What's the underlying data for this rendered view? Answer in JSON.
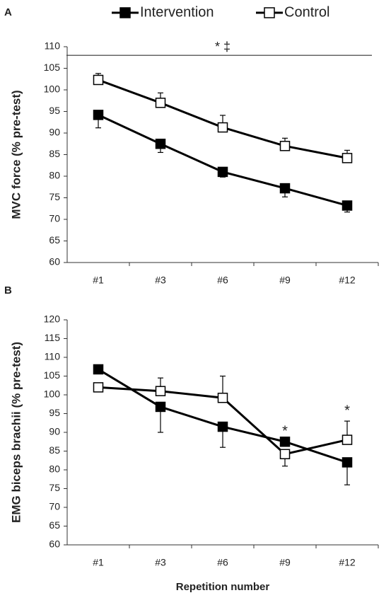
{
  "chart_data": [
    {
      "type": "line",
      "panel": "A",
      "ylabel": "MVC force (% pre-test)",
      "categories": [
        "#1",
        "#3",
        "#6",
        "#9",
        "#12"
      ],
      "ylim": [
        60,
        110
      ],
      "yticks": [
        60,
        65,
        70,
        75,
        80,
        85,
        90,
        95,
        100,
        105,
        110
      ],
      "series": [
        {
          "name": "Intervention",
          "color": "#000000",
          "marker_fill": "#000000",
          "values": [
            94.2,
            87.5,
            81,
            77.2,
            73.2
          ],
          "errors": [
            3,
            2,
            1.2,
            2,
            1.5
          ],
          "error_side": [
            "down",
            "down",
            "down",
            "down",
            "down"
          ]
        },
        {
          "name": "Control",
          "color": "#000000",
          "marker_fill": "#ffffff",
          "values": [
            102.3,
            97,
            91.3,
            87,
            84.2
          ],
          "errors": [
            1.5,
            2.3,
            2.8,
            1.8,
            1.8
          ],
          "error_side": [
            "up",
            "up",
            "up",
            "up",
            "up"
          ]
        }
      ],
      "significance": {
        "text": "*  ‡",
        "y": 108
      }
    },
    {
      "type": "line",
      "panel": "B",
      "ylabel": "EMG biceps brachii (% pre-test)",
      "xlabel": "Repetition number",
      "categories": [
        "#1",
        "#3",
        "#6",
        "#9",
        "#12"
      ],
      "ylim": [
        60,
        120
      ],
      "yticks": [
        60,
        65,
        70,
        75,
        80,
        85,
        90,
        95,
        100,
        105,
        110,
        115,
        120
      ],
      "series": [
        {
          "color": "#000000",
          "marker_fill": "#000000",
          "values": [
            106.8,
            96.8,
            91.5,
            87.5,
            82
          ],
          "errors": [
            1,
            6.8,
            5.5,
            1,
            6
          ],
          "error_side": [
            "up",
            "down",
            "down",
            "down",
            "down"
          ]
        },
        {
          "color": "#000000",
          "marker_fill": "#ffffff",
          "values": [
            102,
            101,
            99.2,
            84.2,
            88
          ],
          "errors": [
            0.5,
            3.5,
            5.8,
            3.2,
            5
          ],
          "error_side": [
            "down",
            "up",
            "up",
            "down",
            "up"
          ]
        }
      ],
      "annotations": [
        {
          "text": "*",
          "category": "#9"
        },
        {
          "text": "*",
          "category": "#12"
        }
      ]
    }
  ]
}
